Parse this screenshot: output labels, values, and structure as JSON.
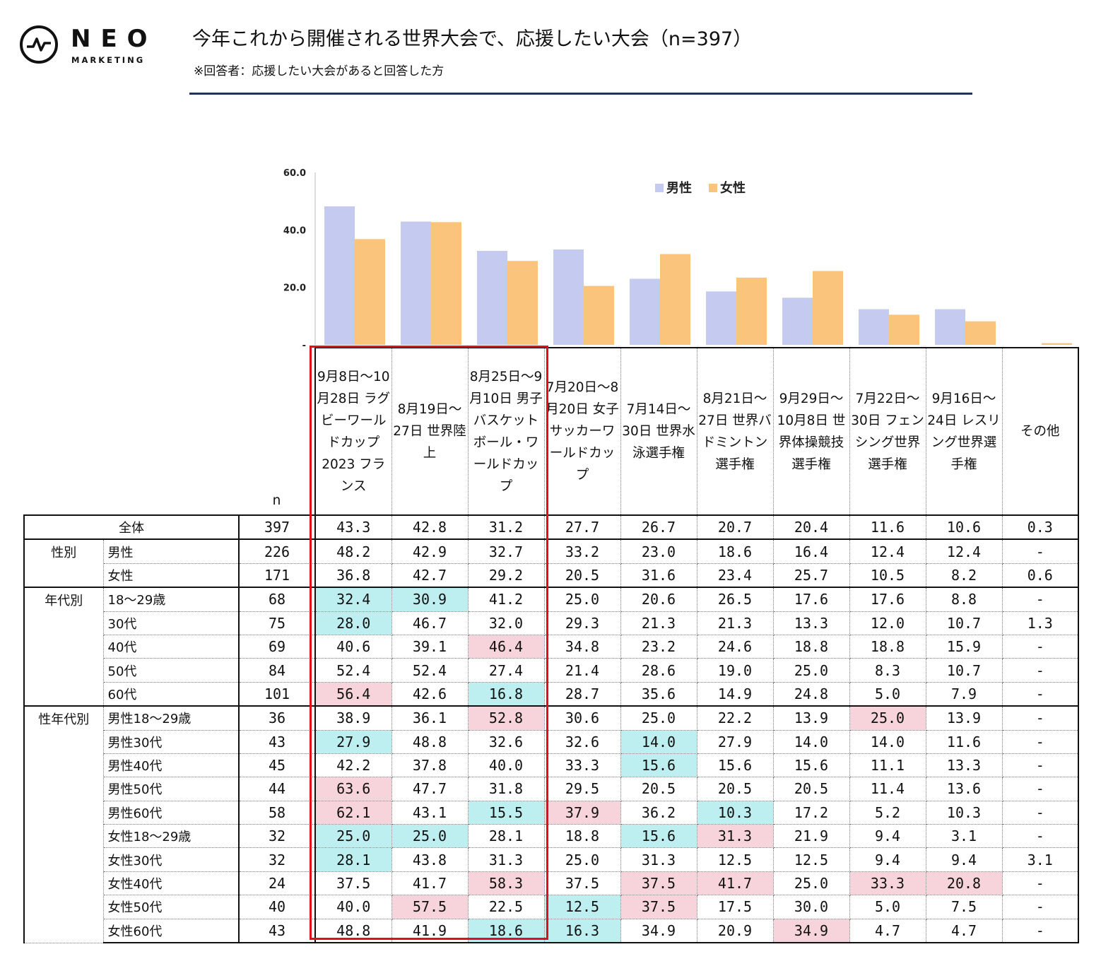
{
  "brand": {
    "name": "NEO",
    "sub": "MARKETING"
  },
  "title": "今年これから開催される世界大会で、応援したい大会（n=397）",
  "subtitle": "※回答者：応援したい大会があると回答した方",
  "colors": {
    "male": "#c5caf0",
    "female": "#fac47c",
    "highlight_low": "#bdeef0",
    "highlight_high": "#f7d4dc",
    "box": "#e10f1a",
    "rule": "#1f2f6b"
  },
  "chart_data": {
    "type": "bar",
    "categories": [
      "9月8日～10月28日 ラグビーワールドカップ2023 フランス",
      "8月19日～27日 世界陸上",
      "8月25日～9月10日 男子バスケットボール・ワールドカップ",
      "7月20日～8月20日 女子サッカーワールドカップ",
      "7月14日～30日 世界水泳選手権",
      "8月21日～27日 世界バドミントン選手権",
      "9月29日～10月8日 世界体操競技選手権",
      "7月22日～30日 フェンシング世界選手権",
      "9月16日～24日 レスリング世界選手権",
      "その他"
    ],
    "series": [
      {
        "name": "男性",
        "values": [
          48.2,
          42.9,
          32.7,
          33.2,
          23.0,
          18.6,
          16.4,
          12.4,
          12.4,
          0
        ]
      },
      {
        "name": "女性",
        "values": [
          36.8,
          42.7,
          29.2,
          20.5,
          31.6,
          23.4,
          25.7,
          10.5,
          8.2,
          0.6
        ]
      }
    ],
    "yticks": [
      "60.0",
      "40.0",
      "20.0",
      "-"
    ],
    "ylim": [
      0,
      60
    ],
    "legend": "top-right"
  },
  "table": {
    "n_label": "n",
    "columns": [
      "9月8日～10月28日 ラグビーワールドカップ2023 フランス",
      "8月19日～27日 世界陸上",
      "8月25日～9月10日 男子バスケットボール・ワールドカップ",
      "7月20日～8月20日 女子サッカーワールドカップ",
      "7月14日～30日 世界水泳選手権",
      "8月21日～27日 世界バドミントン選手権",
      "9月29日～10月8日 世界体操競技選手権",
      "7月22日～30日 フェンシング世界選手権",
      "9月16日～24日 レスリング世界選手権",
      "その他"
    ],
    "groups": [
      {
        "label": "全体",
        "rows": [
          {
            "label": "",
            "n": "397",
            "values": [
              "43.3",
              "42.8",
              "31.2",
              "27.7",
              "26.7",
              "20.7",
              "20.4",
              "11.6",
              "10.6",
              "0.3"
            ],
            "hl": [
              "",
              "",
              "",
              "",
              "",
              "",
              "",
              "",
              "",
              ""
            ]
          }
        ]
      },
      {
        "label": "性別",
        "rows": [
          {
            "label": "男性",
            "n": "226",
            "values": [
              "48.2",
              "42.9",
              "32.7",
              "33.2",
              "23.0",
              "18.6",
              "16.4",
              "12.4",
              "12.4",
              "-"
            ],
            "hl": [
              "",
              "",
              "",
              "",
              "",
              "",
              "",
              "",
              "",
              ""
            ]
          },
          {
            "label": "女性",
            "n": "171",
            "values": [
              "36.8",
              "42.7",
              "29.2",
              "20.5",
              "31.6",
              "23.4",
              "25.7",
              "10.5",
              "8.2",
              "0.6"
            ],
            "hl": [
              "",
              "",
              "",
              "",
              "",
              "",
              "",
              "",
              "",
              ""
            ]
          }
        ]
      },
      {
        "label": "年代別",
        "rows": [
          {
            "label": "18～29歳",
            "n": "68",
            "values": [
              "32.4",
              "30.9",
              "41.2",
              "25.0",
              "20.6",
              "26.5",
              "17.6",
              "17.6",
              "8.8",
              "-"
            ],
            "hl": [
              "low",
              "low",
              "",
              "",
              "",
              "",
              "",
              "",
              "",
              ""
            ]
          },
          {
            "label": "30代",
            "n": "75",
            "values": [
              "28.0",
              "46.7",
              "32.0",
              "29.3",
              "21.3",
              "21.3",
              "13.3",
              "12.0",
              "10.7",
              "1.3"
            ],
            "hl": [
              "low",
              "",
              "",
              "",
              "",
              "",
              "",
              "",
              "",
              ""
            ]
          },
          {
            "label": "40代",
            "n": "69",
            "values": [
              "40.6",
              "39.1",
              "46.4",
              "34.8",
              "23.2",
              "24.6",
              "18.8",
              "18.8",
              "15.9",
              "-"
            ],
            "hl": [
              "",
              "",
              "high",
              "",
              "",
              "",
              "",
              "",
              "",
              ""
            ]
          },
          {
            "label": "50代",
            "n": "84",
            "values": [
              "52.4",
              "52.4",
              "27.4",
              "21.4",
              "28.6",
              "19.0",
              "25.0",
              "8.3",
              "10.7",
              "-"
            ],
            "hl": [
              "",
              "",
              "",
              "",
              "",
              "",
              "",
              "",
              "",
              ""
            ]
          },
          {
            "label": "60代",
            "n": "101",
            "values": [
              "56.4",
              "42.6",
              "16.8",
              "28.7",
              "35.6",
              "14.9",
              "24.8",
              "5.0",
              "7.9",
              "-"
            ],
            "hl": [
              "high",
              "",
              "low",
              "",
              "",
              "",
              "",
              "",
              "",
              ""
            ]
          }
        ]
      },
      {
        "label": "性年代別",
        "rows": [
          {
            "label": "男性18～29歳",
            "n": "36",
            "values": [
              "38.9",
              "36.1",
              "52.8",
              "30.6",
              "25.0",
              "22.2",
              "13.9",
              "25.0",
              "13.9",
              "-"
            ],
            "hl": [
              "",
              "",
              "high",
              "",
              "",
              "",
              "",
              "high",
              "",
              ""
            ]
          },
          {
            "label": "男性30代",
            "n": "43",
            "values": [
              "27.9",
              "48.8",
              "32.6",
              "32.6",
              "14.0",
              "27.9",
              "14.0",
              "14.0",
              "11.6",
              "-"
            ],
            "hl": [
              "low",
              "",
              "",
              "",
              "low",
              "",
              "",
              "",
              "",
              ""
            ]
          },
          {
            "label": "男性40代",
            "n": "45",
            "values": [
              "42.2",
              "37.8",
              "40.0",
              "33.3",
              "15.6",
              "15.6",
              "15.6",
              "11.1",
              "13.3",
              "-"
            ],
            "hl": [
              "",
              "",
              "",
              "",
              "low",
              "",
              "",
              "",
              "",
              ""
            ]
          },
          {
            "label": "男性50代",
            "n": "44",
            "values": [
              "63.6",
              "47.7",
              "31.8",
              "29.5",
              "20.5",
              "20.5",
              "20.5",
              "11.4",
              "13.6",
              "-"
            ],
            "hl": [
              "high",
              "",
              "",
              "",
              "",
              "",
              "",
              "",
              "",
              ""
            ]
          },
          {
            "label": "男性60代",
            "n": "58",
            "values": [
              "62.1",
              "43.1",
              "15.5",
              "37.9",
              "36.2",
              "10.3",
              "17.2",
              "5.2",
              "10.3",
              "-"
            ],
            "hl": [
              "high",
              "",
              "low",
              "high",
              "",
              "low",
              "",
              "",
              "",
              ""
            ]
          },
          {
            "label": "女性18～29歳",
            "n": "32",
            "values": [
              "25.0",
              "25.0",
              "28.1",
              "18.8",
              "15.6",
              "31.3",
              "21.9",
              "9.4",
              "3.1",
              "-"
            ],
            "hl": [
              "low",
              "low",
              "",
              "",
              "low",
              "high",
              "",
              "",
              "",
              ""
            ]
          },
          {
            "label": "女性30代",
            "n": "32",
            "values": [
              "28.1",
              "43.8",
              "31.3",
              "25.0",
              "31.3",
              "12.5",
              "12.5",
              "9.4",
              "9.4",
              "3.1"
            ],
            "hl": [
              "low",
              "",
              "",
              "",
              "",
              "",
              "",
              "",
              "",
              ""
            ]
          },
          {
            "label": "女性40代",
            "n": "24",
            "values": [
              "37.5",
              "41.7",
              "58.3",
              "37.5",
              "37.5",
              "41.7",
              "25.0",
              "33.3",
              "20.8",
              "-"
            ],
            "hl": [
              "",
              "",
              "high",
              "",
              "high",
              "high",
              "",
              "high",
              "high",
              ""
            ]
          },
          {
            "label": "女性50代",
            "n": "40",
            "values": [
              "40.0",
              "57.5",
              "22.5",
              "12.5",
              "37.5",
              "17.5",
              "30.0",
              "5.0",
              "7.5",
              "-"
            ],
            "hl": [
              "",
              "high",
              "",
              "low",
              "high",
              "",
              "",
              "",
              "",
              ""
            ]
          },
          {
            "label": "女性60代",
            "n": "43",
            "values": [
              "48.8",
              "41.9",
              "18.6",
              "16.3",
              "34.9",
              "20.9",
              "34.9",
              "4.7",
              "4.7",
              "-"
            ],
            "hl": [
              "",
              "",
              "low",
              "low",
              "",
              "",
              "high",
              "",
              "",
              ""
            ]
          }
        ]
      }
    ]
  }
}
